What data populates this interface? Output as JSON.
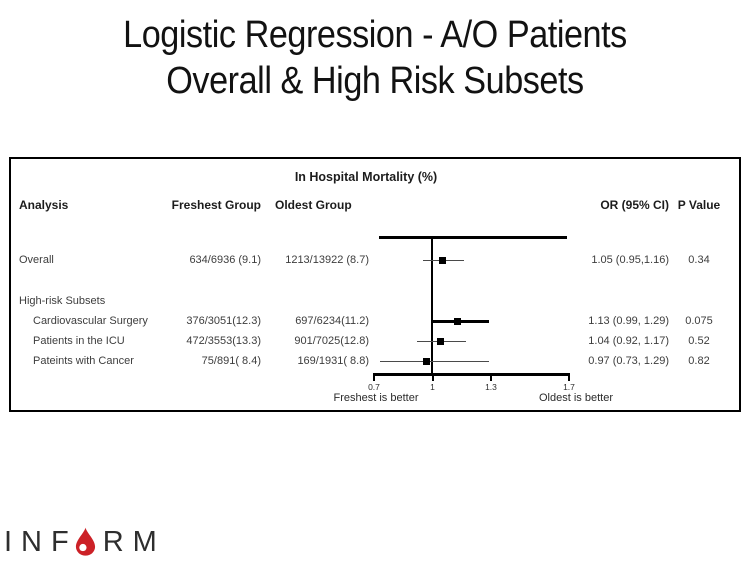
{
  "title": {
    "line1": "Logistic Regression - A/O Patients",
    "line2": "Overall & High Risk Subsets"
  },
  "table": {
    "group_header": "In Hospital Mortality (%)",
    "columns": {
      "analysis": "Analysis",
      "freshest": "Freshest Group",
      "oldest": "Oldest Group",
      "or": "OR (95% CI)",
      "p": "P Value"
    },
    "rows": [
      {
        "label": "Overall",
        "freshest": "634/6936 (9.1)",
        "oldest": "1213/13922 (8.7)",
        "or": "1.05 (0.95,1.16)",
        "p": "0.34"
      },
      {
        "label": "High-risk Subsets",
        "freshest": "",
        "oldest": "",
        "or": "",
        "p": ""
      },
      {
        "label": "Cardiovascular Surgery",
        "freshest": "376/3051(12.3)",
        "oldest": "697/6234(11.2)",
        "or": "1.13 (0.99, 1.29)",
        "p": "0.075"
      },
      {
        "label": "Patients in the ICU",
        "freshest": "472/3553(13.3)",
        "oldest": "901/7025(12.8)",
        "or": "1.04 (0.92, 1.17)",
        "p": "0.52"
      },
      {
        "label": "Pateints with Cancer",
        "freshest": "75/891( 8.4)",
        "oldest": "169/1931( 8.8)",
        "or": "0.97 (0.73, 1.29)",
        "p": "0.82"
      }
    ]
  },
  "chart_data": {
    "type": "scatter",
    "subtype": "forest-plot",
    "title": "In Hospital Mortality (%)",
    "xlim": [
      0.7,
      1.7
    ],
    "x_ticks": [
      0.7,
      1,
      1.3,
      1.7
    ],
    "x_tick_labels": [
      "0.7",
      "1",
      "1.3",
      "1.7"
    ],
    "reference_line": 1,
    "left_note": "Freshest is better",
    "right_note": "Oldest is better",
    "points": [
      {
        "label": "Overall",
        "or": 1.05,
        "ci": [
          0.95,
          1.16
        ],
        "bold_ci": false
      },
      {
        "label": "Cardiovascular Surgery",
        "or": 1.13,
        "ci": [
          0.99,
          1.29
        ],
        "bold_ci": true
      },
      {
        "label": "Patients in the ICU",
        "or": 1.04,
        "ci": [
          0.92,
          1.17
        ],
        "bold_ci": false
      },
      {
        "label": "Pateints with Cancer",
        "or": 0.97,
        "ci": [
          0.73,
          1.29
        ],
        "bold_ci": false
      }
    ]
  },
  "plot_labels": {
    "left": "Freshest is better",
    "right": "Oldest is better"
  },
  "logo": {
    "text": "INFORM",
    "prefix": "INF",
    "suffix": "RM",
    "drop_color": "#cc2127",
    "letter_color": "#2e2e2e"
  }
}
